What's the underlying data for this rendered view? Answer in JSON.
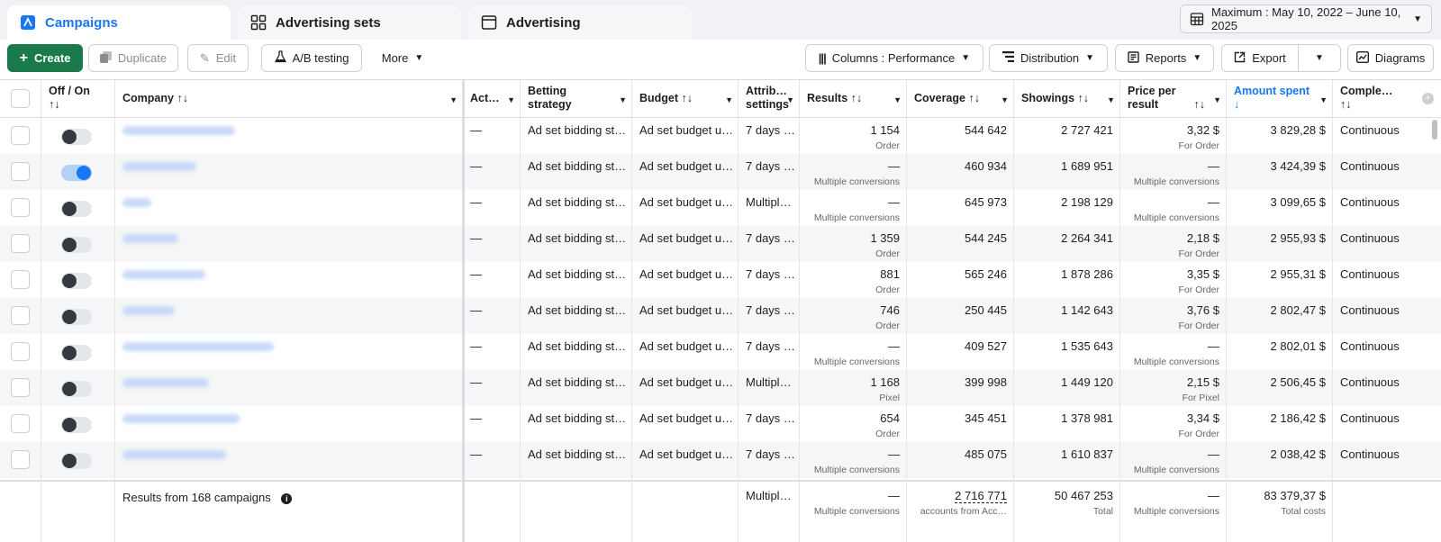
{
  "tabs": [
    {
      "label": "Campaigns",
      "icon": "campaigns-icon"
    },
    {
      "label": "Advertising sets",
      "icon": "grid-icon"
    },
    {
      "label": "Advertising",
      "icon": "ad-icon"
    }
  ],
  "date_range": "Maximum : May 10, 2022 – June 10, 2025",
  "toolbar": {
    "create": "Create",
    "duplicate": "Duplicate",
    "edit": "Edit",
    "ab_testing": "A/B testing",
    "more": "More",
    "columns": "Columns : Performance",
    "distribution": "Distribution",
    "reports": "Reports",
    "export": "Export",
    "diagrams": "Diagrams"
  },
  "headers": {
    "off_on": "Off / On",
    "company": "Company",
    "activity": "Act…",
    "betting": "Betting strategy",
    "budget": "Budget",
    "attribution": "Attrib… settings",
    "results": "Results",
    "coverage": "Coverage",
    "showings": "Showings",
    "price": "Price per result",
    "amount": "Amount spent",
    "completion": "Comple…",
    "sort": "↑↓",
    "sort_down": "↓"
  },
  "rows": [
    {
      "on": false,
      "activity": "—",
      "betting": "Ad set bidding st…",
      "budget": "Ad set budget u…",
      "attribution": "7 days …",
      "results": "1 154",
      "results_sub": "Order",
      "coverage": "544 642",
      "showings": "2 727 421",
      "price": "3,32 $",
      "price_sub": "For Order",
      "amount": "3 829,28 $",
      "completion": "Continuous",
      "name_w": 125
    },
    {
      "on": true,
      "activity": "—",
      "betting": "Ad set bidding st…",
      "budget": "Ad set budget u…",
      "attribution": "7 days …",
      "results": "—",
      "results_sub": "Multiple conversions",
      "coverage": "460 934",
      "showings": "1 689 951",
      "price": "—",
      "price_sub": "Multiple conversions",
      "amount": "3 424,39 $",
      "completion": "Continuous",
      "name_w": 82
    },
    {
      "on": false,
      "activity": "—",
      "betting": "Ad set bidding st…",
      "budget": "Ad set budget u…",
      "attribution": "Multipl…",
      "results": "—",
      "results_sub": "Multiple conversions",
      "coverage": "645 973",
      "showings": "2 198 129",
      "price": "—",
      "price_sub": "Multiple conversions",
      "amount": "3 099,65 $",
      "completion": "Continuous",
      "name_w": 32
    },
    {
      "on": false,
      "activity": "—",
      "betting": "Ad set bidding st…",
      "budget": "Ad set budget u…",
      "attribution": "7 days …",
      "results": "1 359",
      "results_sub": "Order",
      "coverage": "544 245",
      "showings": "2 264 341",
      "price": "2,18 $",
      "price_sub": "For Order",
      "amount": "2 955,93 $",
      "completion": "Continuous",
      "name_w": 62
    },
    {
      "on": false,
      "activity": "—",
      "betting": "Ad set bidding st…",
      "budget": "Ad set budget u…",
      "attribution": "7 days …",
      "results": "881",
      "results_sub": "Order",
      "coverage": "565 246",
      "showings": "1 878 286",
      "price": "3,35 $",
      "price_sub": "For Order",
      "amount": "2 955,31 $",
      "completion": "Continuous",
      "name_w": 92
    },
    {
      "on": false,
      "activity": "—",
      "betting": "Ad set bidding st…",
      "budget": "Ad set budget u…",
      "attribution": "7 days …",
      "results": "746",
      "results_sub": "Order",
      "coverage": "250 445",
      "showings": "1 142 643",
      "price": "3,76 $",
      "price_sub": "For Order",
      "amount": "2 802,47 $",
      "completion": "Continuous",
      "name_w": 58
    },
    {
      "on": false,
      "activity": "—",
      "betting": "Ad set bidding st…",
      "budget": "Ad set budget u…",
      "attribution": "7 days …",
      "results": "—",
      "results_sub": "Multiple conversions",
      "coverage": "409 527",
      "showings": "1 535 643",
      "price": "—",
      "price_sub": "Multiple conversions",
      "amount": "2 802,01 $",
      "completion": "Continuous",
      "name_w": 168
    },
    {
      "on": false,
      "activity": "—",
      "betting": "Ad set bidding st…",
      "budget": "Ad set budget u…",
      "attribution": "Multipl…",
      "results": "1 168",
      "results_sub": "Pixel",
      "coverage": "399 998",
      "showings": "1 449 120",
      "price": "2,15 $",
      "price_sub": "For Pixel",
      "amount": "2 506,45 $",
      "completion": "Continuous",
      "name_w": 96
    },
    {
      "on": false,
      "activity": "—",
      "betting": "Ad set bidding st…",
      "budget": "Ad set budget u…",
      "attribution": "7 days …",
      "results": "654",
      "results_sub": "Order",
      "coverage": "345 451",
      "showings": "1 378 981",
      "price": "3,34 $",
      "price_sub": "For Order",
      "amount": "2 186,42 $",
      "completion": "Continuous",
      "name_w": 130
    },
    {
      "on": false,
      "activity": "—",
      "betting": "Ad set bidding st…",
      "budget": "Ad set budget u…",
      "attribution": "7 days …",
      "results": "—",
      "results_sub": "Multiple conversions",
      "coverage": "485 075",
      "showings": "1 610 837",
      "price": "—",
      "price_sub": "Multiple conversions",
      "amount": "2 038,42 $",
      "completion": "Continuous",
      "name_w": 115
    }
  ],
  "footer": {
    "label": "Results from 168 campaigns",
    "attribution": "Multipl…",
    "results": "—",
    "results_sub": "Multiple conversions",
    "coverage": "2 716 771",
    "coverage_sub": "accounts from Acc…",
    "showings": "50 467 253",
    "showings_sub": "Total",
    "price": "—",
    "price_sub": "Multiple conversions",
    "amount": "83 379,37 $",
    "amount_sub": "Total costs"
  }
}
